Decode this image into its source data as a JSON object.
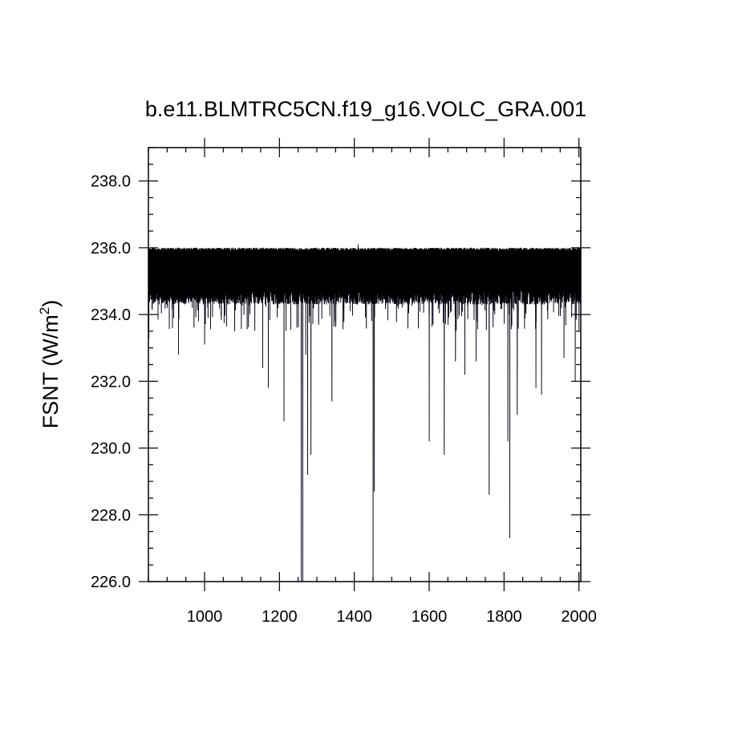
{
  "chart_data": {
    "type": "line",
    "title": "b.e11.BLMTRC5CN.f19_g16.VOLC_GRA.001",
    "ylabel": {
      "base": "FSNT (W/m",
      "sup": "2",
      "close": ")"
    },
    "xlabel": "",
    "xlim": [
      850,
      2005
    ],
    "ylim": [
      226.0,
      239.0
    ],
    "x_ticks": [
      1000,
      1200,
      1400,
      1600,
      1800,
      2000
    ],
    "x_tick_labels": [
      "1000",
      "1200",
      "1400",
      "1600",
      "1800",
      "2000"
    ],
    "y_ticks": [
      226.0,
      228.0,
      230.0,
      232.0,
      234.0,
      236.0,
      238.0
    ],
    "y_tick_labels": [
      "226.0",
      "228.0",
      "230.0",
      "232.0",
      "234.0",
      "236.0",
      "238.0"
    ],
    "grid": false,
    "colors": {
      "line": "#000000",
      "line_edge": "#1a1a5e"
    },
    "series": [
      {
        "x_start": 850,
        "x_end": 2005,
        "baseline_band": [
          234.8,
          236.0
        ],
        "peak": {
          "x": 1410,
          "y": 236.1
        },
        "dips": [
          {
            "x": 851,
            "y": 233.3
          },
          {
            "x": 900,
            "y": 234.2
          },
          {
            "x": 930,
            "y": 232.8
          },
          {
            "x": 1000,
            "y": 233.1
          },
          {
            "x": 1080,
            "y": 233.5
          },
          {
            "x": 1155,
            "y": 232.4
          },
          {
            "x": 1170,
            "y": 231.8
          },
          {
            "x": 1212,
            "y": 230.8
          },
          {
            "x": 1258,
            "y": 226.0
          },
          {
            "x": 1262,
            "y": 226.0
          },
          {
            "x": 1270,
            "y": 232.8
          },
          {
            "x": 1275,
            "y": 229.2
          },
          {
            "x": 1284,
            "y": 229.8
          },
          {
            "x": 1340,
            "y": 231.4
          },
          {
            "x": 1450,
            "y": 226.0
          },
          {
            "x": 1453,
            "y": 228.7
          },
          {
            "x": 1600,
            "y": 230.2
          },
          {
            "x": 1640,
            "y": 229.8
          },
          {
            "x": 1670,
            "y": 232.6
          },
          {
            "x": 1695,
            "y": 232.2
          },
          {
            "x": 1725,
            "y": 232.6
          },
          {
            "x": 1760,
            "y": 228.6
          },
          {
            "x": 1810,
            "y": 230.2
          },
          {
            "x": 1815,
            "y": 227.3
          },
          {
            "x": 1835,
            "y": 231.0
          },
          {
            "x": 1885,
            "y": 231.8
          },
          {
            "x": 1900,
            "y": 231.6
          },
          {
            "x": 1960,
            "y": 232.7
          },
          {
            "x": 1990,
            "y": 232.0
          }
        ]
      }
    ]
  }
}
